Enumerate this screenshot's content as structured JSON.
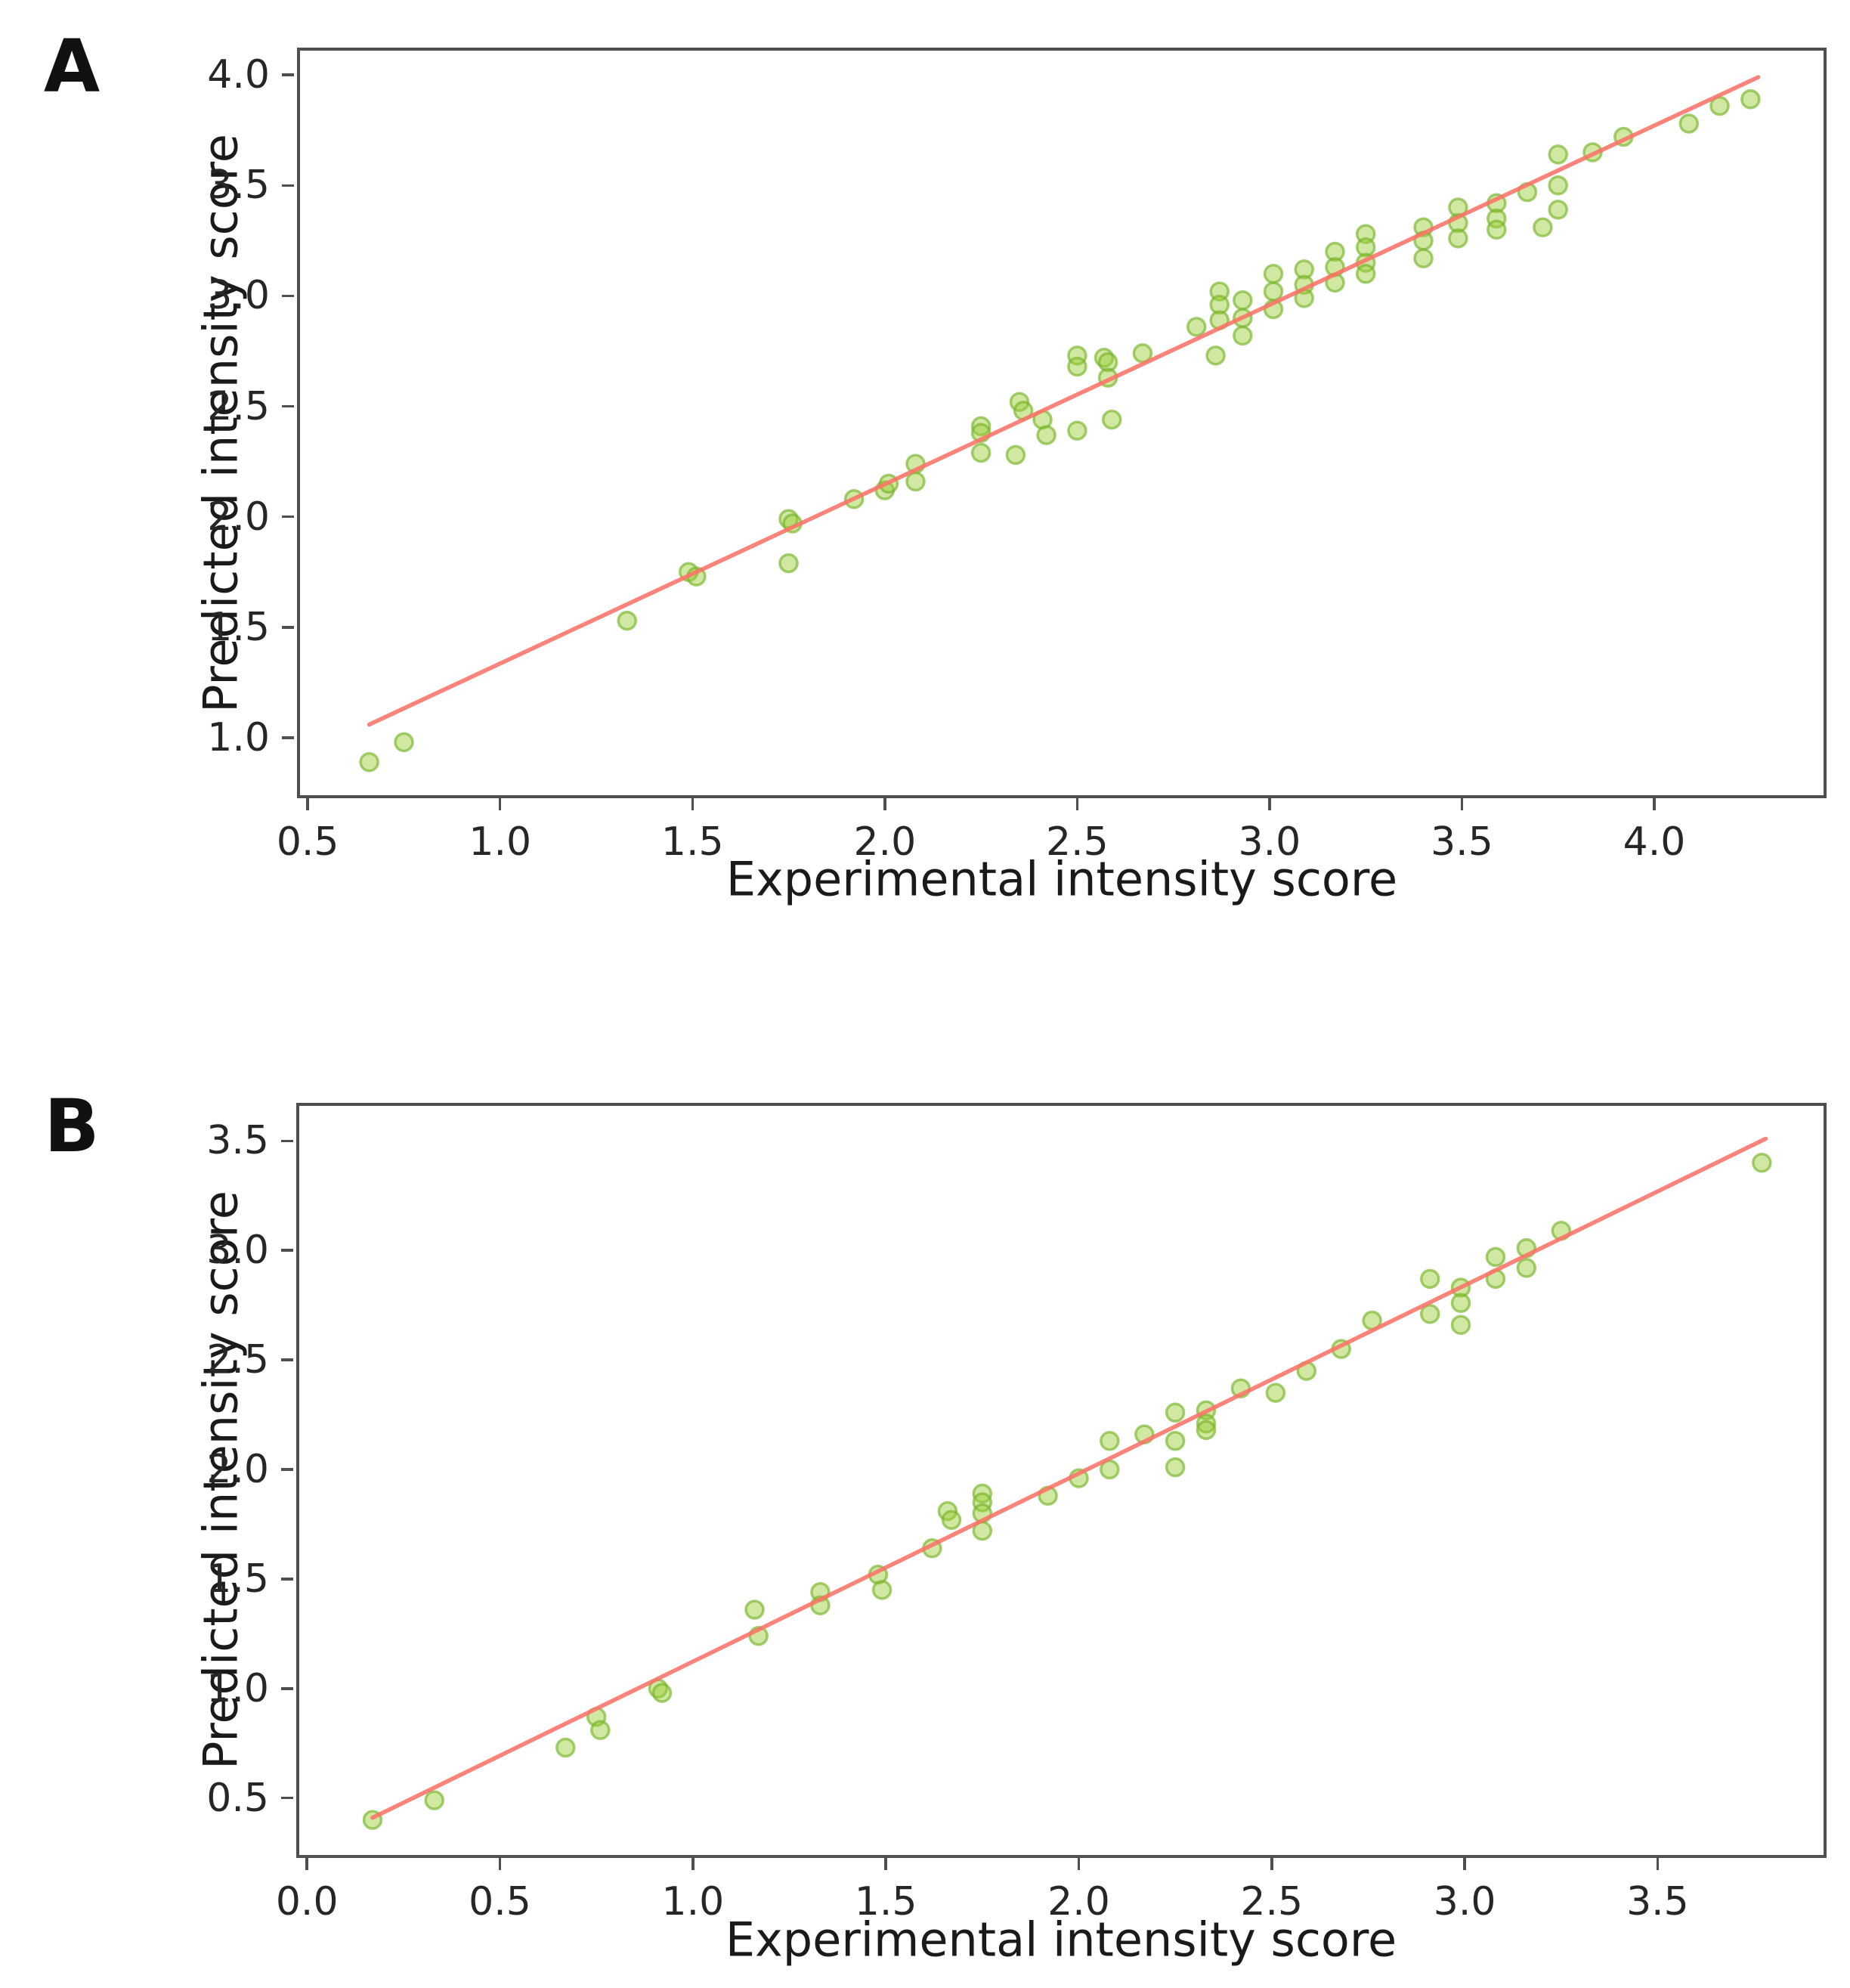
{
  "figure_background": "#ffffff",
  "chart_data": [
    {
      "type": "scatter",
      "panel": "A",
      "title": "",
      "xlabel": "Experimental intensity score",
      "ylabel": "Predicted intensity score",
      "xlim": [
        0.48,
        4.44
      ],
      "ylim": [
        0.74,
        4.11
      ],
      "xticks": [
        0.5,
        1.0,
        1.5,
        2.0,
        2.5,
        3.0,
        3.5,
        4.0
      ],
      "xtick_labels": [
        "0.5",
        "1.0",
        "1.5",
        "2.0",
        "2.5",
        "3.0",
        "3.5",
        "4.0"
      ],
      "yticks": [
        1.0,
        1.5,
        2.0,
        2.5,
        3.0,
        3.5,
        4.0
      ],
      "ytick_labels": [
        "1.0",
        "1.5",
        "2.0",
        "2.5",
        "3.0",
        "3.5",
        "4.0"
      ],
      "grid": false,
      "legend": null,
      "marker_fill_color": "#9acd32",
      "marker_edge_color": "#76b428",
      "line_color": "#fa7266",
      "regression_line": {
        "x1": 0.66,
        "y1": 1.06,
        "x2": 4.27,
        "y2": 3.99
      },
      "points": [
        [
          0.66,
          0.89
        ],
        [
          0.75,
          0.98
        ],
        [
          1.33,
          1.53
        ],
        [
          1.49,
          1.75
        ],
        [
          1.51,
          1.73
        ],
        [
          1.75,
          1.99
        ],
        [
          1.76,
          1.97
        ],
        [
          1.75,
          1.79
        ],
        [
          1.92,
          2.08
        ],
        [
          2.0,
          2.12
        ],
        [
          2.01,
          2.15
        ],
        [
          2.08,
          2.24
        ],
        [
          2.08,
          2.16
        ],
        [
          2.25,
          2.41
        ],
        [
          2.25,
          2.38
        ],
        [
          2.25,
          2.29
        ],
        [
          2.34,
          2.28
        ],
        [
          2.35,
          2.52
        ],
        [
          2.36,
          2.48
        ],
        [
          2.41,
          2.44
        ],
        [
          2.42,
          2.37
        ],
        [
          2.5,
          2.73
        ],
        [
          2.5,
          2.68
        ],
        [
          2.5,
          2.39
        ],
        [
          2.57,
          2.72
        ],
        [
          2.58,
          2.7
        ],
        [
          2.58,
          2.63
        ],
        [
          2.59,
          2.44
        ],
        [
          2.67,
          2.74
        ],
        [
          2.81,
          2.86
        ],
        [
          2.86,
          2.73
        ],
        [
          2.87,
          3.02
        ],
        [
          2.87,
          2.96
        ],
        [
          2.87,
          2.89
        ],
        [
          2.93,
          2.98
        ],
        [
          2.93,
          2.9
        ],
        [
          2.93,
          2.82
        ],
        [
          3.01,
          3.1
        ],
        [
          3.01,
          3.02
        ],
        [
          3.01,
          2.94
        ],
        [
          3.09,
          3.12
        ],
        [
          3.09,
          3.05
        ],
        [
          3.09,
          2.99
        ],
        [
          3.17,
          3.2
        ],
        [
          3.17,
          3.13
        ],
        [
          3.17,
          3.06
        ],
        [
          3.25,
          3.28
        ],
        [
          3.25,
          3.22
        ],
        [
          3.25,
          3.15
        ],
        [
          3.25,
          3.1
        ],
        [
          3.4,
          3.31
        ],
        [
          3.4,
          3.25
        ],
        [
          3.4,
          3.17
        ],
        [
          3.49,
          3.4
        ],
        [
          3.49,
          3.33
        ],
        [
          3.49,
          3.26
        ],
        [
          3.59,
          3.42
        ],
        [
          3.59,
          3.35
        ],
        [
          3.59,
          3.3
        ],
        [
          3.67,
          3.47
        ],
        [
          3.71,
          3.31
        ],
        [
          3.75,
          3.64
        ],
        [
          3.75,
          3.5
        ],
        [
          3.75,
          3.39
        ],
        [
          3.84,
          3.65
        ],
        [
          3.92,
          3.72
        ],
        [
          4.09,
          3.78
        ],
        [
          4.17,
          3.86
        ],
        [
          4.25,
          3.89
        ]
      ]
    },
    {
      "type": "scatter",
      "panel": "B",
      "title": "",
      "xlabel": "Experimental intensity score",
      "ylabel": "Predicted intensity score",
      "xlim": [
        -0.02,
        3.93
      ],
      "ylim": [
        0.24,
        3.66
      ],
      "xticks": [
        0.0,
        0.5,
        1.0,
        1.5,
        2.0,
        2.5,
        3.0,
        3.5
      ],
      "xtick_labels": [
        "0.0",
        "0.5",
        "1.0",
        "1.5",
        "2.0",
        "2.5",
        "3.0",
        "3.5"
      ],
      "yticks": [
        0.5,
        1.0,
        1.5,
        2.0,
        2.5,
        3.0,
        3.5
      ],
      "ytick_labels": [
        "0.5",
        "1.0",
        "1.5",
        "2.0",
        "2.5",
        "3.0",
        "3.5"
      ],
      "grid": false,
      "legend": null,
      "marker_fill_color": "#9acd32",
      "marker_edge_color": "#76b428",
      "line_color": "#fa7266",
      "regression_line": {
        "x1": 0.17,
        "y1": 0.41,
        "x2": 3.78,
        "y2": 3.51
      },
      "points": [
        [
          0.17,
          0.4
        ],
        [
          0.33,
          0.49
        ],
        [
          0.67,
          0.73
        ],
        [
          0.75,
          0.87
        ],
        [
          0.76,
          0.81
        ],
        [
          0.91,
          1.0
        ],
        [
          0.92,
          0.98
        ],
        [
          1.16,
          1.36
        ],
        [
          1.17,
          1.24
        ],
        [
          1.33,
          1.44
        ],
        [
          1.33,
          1.38
        ],
        [
          1.48,
          1.52
        ],
        [
          1.49,
          1.45
        ],
        [
          1.62,
          1.64
        ],
        [
          1.66,
          1.81
        ],
        [
          1.67,
          1.77
        ],
        [
          1.75,
          1.89
        ],
        [
          1.75,
          1.85
        ],
        [
          1.75,
          1.8
        ],
        [
          1.75,
          1.72
        ],
        [
          1.92,
          1.88
        ],
        [
          2.0,
          1.96
        ],
        [
          2.08,
          2.13
        ],
        [
          2.08,
          2.0
        ],
        [
          2.17,
          2.16
        ],
        [
          2.25,
          2.26
        ],
        [
          2.25,
          2.13
        ],
        [
          2.25,
          2.01
        ],
        [
          2.33,
          2.27
        ],
        [
          2.33,
          2.21
        ],
        [
          2.33,
          2.18
        ],
        [
          2.42,
          2.37
        ],
        [
          2.51,
          2.35
        ],
        [
          2.59,
          2.45
        ],
        [
          2.68,
          2.55
        ],
        [
          2.76,
          2.68
        ],
        [
          2.91,
          2.87
        ],
        [
          2.91,
          2.71
        ],
        [
          2.99,
          2.83
        ],
        [
          2.99,
          2.76
        ],
        [
          2.99,
          2.66
        ],
        [
          3.08,
          2.97
        ],
        [
          3.08,
          2.87
        ],
        [
          3.16,
          3.01
        ],
        [
          3.16,
          2.92
        ],
        [
          3.25,
          3.09
        ],
        [
          3.77,
          3.4
        ]
      ]
    }
  ]
}
